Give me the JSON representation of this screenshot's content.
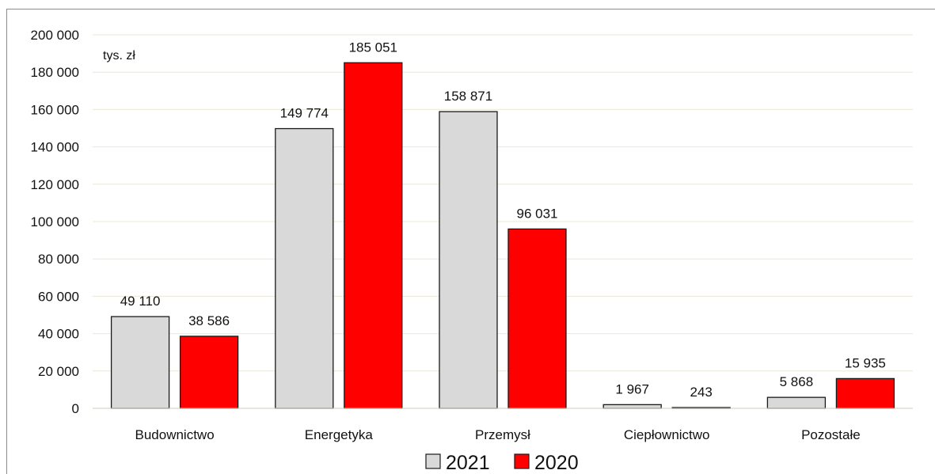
{
  "chart_data": {
    "type": "bar",
    "unit_label": "tys. zł",
    "categories": [
      "Budownictwo",
      "Energetyka",
      "Przemysł",
      "Ciepłownictwo",
      "Pozostałe"
    ],
    "series": [
      {
        "name": "2021",
        "color": "#d9d9d9",
        "values": [
          49110,
          149774,
          158871,
          1967,
          5868
        ],
        "labels": [
          "49 110",
          "149 774",
          "158 871",
          "1 967",
          "5 868"
        ]
      },
      {
        "name": "2020",
        "color": "#ff0000",
        "values": [
          38586,
          185051,
          96031,
          243,
          15935
        ],
        "labels": [
          "38 586",
          "185 051",
          "96 031",
          "243",
          "15 935"
        ]
      }
    ],
    "ylim": [
      0,
      200000
    ],
    "yticks": [
      0,
      20000,
      40000,
      60000,
      80000,
      100000,
      120000,
      140000,
      160000,
      180000,
      200000
    ],
    "ytick_labels": [
      "0",
      "20 000",
      "40 000",
      "60 000",
      "80 000",
      "100 000",
      "120 000",
      "140 000",
      "160 000",
      "180 000",
      "200 000"
    ],
    "grid": true,
    "legend_position": "bottom-center"
  }
}
